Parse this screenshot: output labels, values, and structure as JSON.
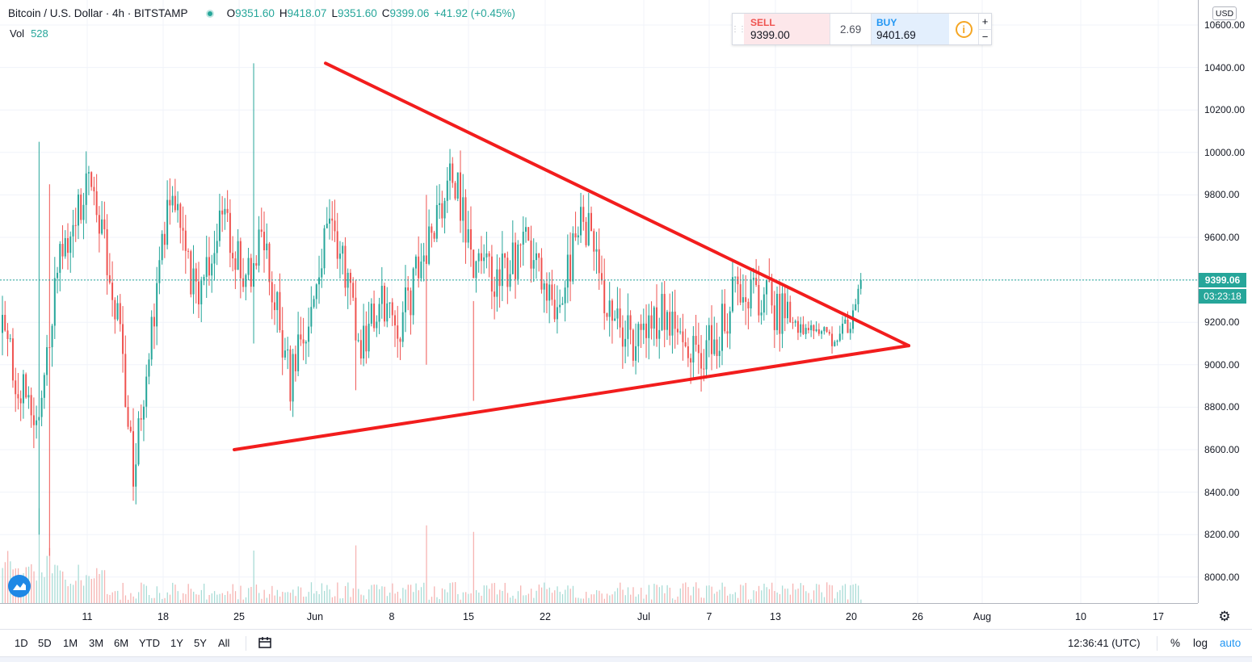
{
  "symbol": {
    "title": "Bitcoin / U.S. Dollar · 4h · BITSTAMP",
    "status_color": "#26a69a"
  },
  "ohlc": {
    "open_label": "O",
    "open": "9351.60",
    "high_label": "H",
    "high": "9418.07",
    "low_label": "L",
    "low": "9351.60",
    "close_label": "C",
    "close": "9399.06",
    "change": "+41.92 (+0.45%)"
  },
  "volume": {
    "label": "Vol",
    "value": "528"
  },
  "trade_panel": {
    "sell_label": "SELL",
    "sell_price": "9399.00",
    "spread": "2.69",
    "buy_label": "BUY",
    "buy_price": "9401.69",
    "info_icon": "info-icon",
    "plus": "+",
    "minus": "−"
  },
  "currency": "USD",
  "last_price": {
    "value": "9399.06",
    "countdown": "03:23:18"
  },
  "y_axis_labels": [
    "10600.00",
    "10400.00",
    "10200.00",
    "10000.00",
    "9800.00",
    "9600.00",
    "9400.00",
    "9200.00",
    "9000.00",
    "8800.00",
    "8600.00",
    "8400.00",
    "8200.00",
    "8000.00"
  ],
  "x_axis_labels": [
    "11",
    "18",
    "25",
    "Jun",
    "8",
    "15",
    "22",
    "Jul",
    "7",
    "13",
    "20",
    "26",
    "Aug",
    "10",
    "17"
  ],
  "ranges": [
    "1D",
    "5D",
    "1M",
    "3M",
    "6M",
    "YTD",
    "1Y",
    "5Y",
    "All"
  ],
  "clock": "12:36:41 (UTC)",
  "scale_options": {
    "percent": "%",
    "log": "log",
    "auto": "auto"
  },
  "colors": {
    "up": "#26a69a",
    "down": "#ef5350",
    "drawing": "#f21d1d",
    "price_line": "#26a69a"
  },
  "chart_data": {
    "type": "candlestick",
    "interval": "4h",
    "ylim": [
      7880,
      10680
    ],
    "price_scale": "linear",
    "grid": true,
    "series_keypoints": [
      {
        "bar": 0,
        "price": 9150
      },
      {
        "bar": 12,
        "price": 8700
      },
      {
        "bar": 22,
        "price": 9500
      },
      {
        "bar": 34,
        "price": 9900
      },
      {
        "bar": 44,
        "price": 9200
      },
      {
        "bar": 50,
        "price": 8500
      },
      {
        "bar": 56,
        "price": 9100
      },
      {
        "bar": 64,
        "price": 9800
      },
      {
        "bar": 74,
        "price": 9300
      },
      {
        "bar": 84,
        "price": 9700
      },
      {
        "bar": 92,
        "price": 9400
      },
      {
        "bar": 100,
        "price": 9600
      },
      {
        "bar": 110,
        "price": 8900
      },
      {
        "bar": 118,
        "price": 9300
      },
      {
        "bar": 126,
        "price": 9700
      },
      {
        "bar": 136,
        "price": 9100
      },
      {
        "bar": 146,
        "price": 9300
      },
      {
        "bar": 152,
        "price": 9200
      },
      {
        "bar": 162,
        "price": 9550
      },
      {
        "bar": 172,
        "price": 9900
      },
      {
        "bar": 180,
        "price": 9500
      },
      {
        "bar": 190,
        "price": 9400
      },
      {
        "bar": 200,
        "price": 9550
      },
      {
        "bar": 212,
        "price": 9300
      },
      {
        "bar": 222,
        "price": 9700
      },
      {
        "bar": 232,
        "price": 9250
      },
      {
        "bar": 242,
        "price": 9100
      },
      {
        "bar": 252,
        "price": 9250
      },
      {
        "bar": 262,
        "price": 9050
      },
      {
        "bar": 272,
        "price": 9100
      },
      {
        "bar": 282,
        "price": 9400
      },
      {
        "bar": 292,
        "price": 9300
      },
      {
        "bar": 302,
        "price": 9200
      },
      {
        "bar": 312,
        "price": 9150
      },
      {
        "bar": 318,
        "price": 9120
      },
      {
        "bar": 324,
        "price": 9200
      },
      {
        "bar": 328,
        "price": 9399
      }
    ],
    "spikes": [
      {
        "bar": 14,
        "low": 8200,
        "high": 10050
      },
      {
        "bar": 18,
        "low": 8100,
        "high": 9850
      },
      {
        "bar": 96,
        "low": 9100,
        "high": 10420
      },
      {
        "bar": 135,
        "low": 8880,
        "high": 9400
      },
      {
        "bar": 162,
        "low": 9000,
        "high": 9800
      },
      {
        "bar": 180,
        "low": 8830,
        "high": 9300
      }
    ],
    "bar_count": 329,
    "triangle_lines": [
      {
        "from": {
          "date": "May 25",
          "price": 8600
        },
        "to": {
          "date": "Jul 25",
          "price": 9090
        }
      },
      {
        "from": {
          "date": "Jun 1",
          "price": 10420
        },
        "to": {
          "date": "Jul 25",
          "price": 9090
        }
      }
    ],
    "last_price": 9399.06
  }
}
